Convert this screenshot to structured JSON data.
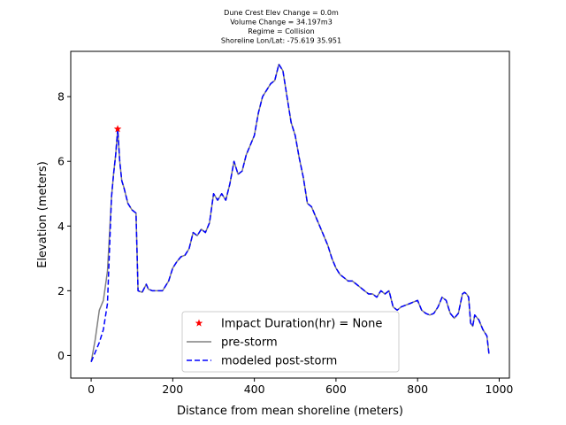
{
  "chart_data": {
    "type": "line",
    "title_lines": [
      "Dune Crest Elev Change = 0.0m",
      "Volume Change = 34.197m3",
      "Regime = Collision",
      "Shoreline Lon/Lat: -75.619 35.951"
    ],
    "xlabel": "Distance from mean shoreline (meters)",
    "ylabel": "Elevation (meters)",
    "xlim": [
      -50,
      1025
    ],
    "ylim": [
      -0.7,
      9.4
    ],
    "xticks": [
      0,
      200,
      400,
      600,
      800,
      1000
    ],
    "yticks": [
      0,
      2,
      4,
      6,
      8
    ],
    "legend_position": "lower-center",
    "colors": {
      "pre": "#808080",
      "post": "#0000ff",
      "marker": "#ff0000"
    },
    "legend": [
      "Impact Duration(hr) = None",
      "pre-storm",
      "modeled post-storm"
    ],
    "marker": {
      "name": "Impact Duration(hr) = None",
      "x": 65,
      "y": 7.0
    },
    "series": [
      {
        "name": "pre-storm",
        "style": "solid",
        "x": [
          0,
          10,
          20,
          30,
          40,
          50,
          55,
          60,
          65,
          70,
          75,
          80,
          90,
          100,
          110,
          115,
          125,
          135,
          140,
          150,
          160,
          175,
          190,
          200,
          210,
          220,
          230,
          240,
          250,
          260,
          270,
          280,
          290,
          300,
          310,
          320,
          330,
          340,
          350,
          360,
          370,
          380,
          390,
          400,
          410,
          420,
          430,
          440,
          450,
          460,
          470,
          480,
          490,
          500,
          510,
          520,
          530,
          540,
          550,
          560,
          570,
          580,
          590,
          600,
          610,
          620,
          630,
          640,
          650,
          660,
          670,
          680,
          690,
          700,
          710,
          720,
          730,
          740,
          750,
          760,
          770,
          780,
          790,
          800,
          810,
          820,
          830,
          840,
          850,
          860,
          870,
          880,
          890,
          900,
          910,
          915,
          920,
          925,
          930,
          935,
          940,
          950,
          960,
          970,
          975
        ],
        "y": [
          -0.2,
          0.5,
          1.4,
          1.7,
          2.6,
          4.9,
          5.6,
          6.2,
          7.0,
          6.0,
          5.4,
          5.2,
          4.7,
          4.5,
          4.4,
          2.0,
          1.95,
          2.2,
          2.05,
          2.0,
          2.0,
          2.0,
          2.3,
          2.7,
          2.9,
          3.05,
          3.1,
          3.3,
          3.8,
          3.7,
          3.9,
          3.8,
          4.1,
          5.0,
          4.8,
          5.0,
          4.8,
          5.3,
          6.0,
          5.6,
          5.7,
          6.2,
          6.5,
          6.8,
          7.5,
          8.0,
          8.2,
          8.4,
          8.5,
          9.0,
          8.8,
          8.0,
          7.2,
          6.8,
          6.1,
          5.5,
          4.7,
          4.6,
          4.3,
          4.0,
          3.7,
          3.4,
          3.0,
          2.7,
          2.5,
          2.4,
          2.3,
          2.3,
          2.2,
          2.1,
          2.0,
          1.9,
          1.9,
          1.8,
          2.0,
          1.9,
          2.0,
          1.5,
          1.4,
          1.5,
          1.55,
          1.6,
          1.65,
          1.7,
          1.4,
          1.3,
          1.25,
          1.3,
          1.5,
          1.8,
          1.7,
          1.3,
          1.15,
          1.3,
          1.9,
          1.95,
          1.9,
          1.8,
          1.0,
          0.9,
          1.25,
          1.1,
          0.8,
          0.6,
          0.05
        ]
      },
      {
        "name": "modeled post-storm",
        "style": "dashed",
        "x": [
          0,
          10,
          20,
          30,
          40,
          50,
          55,
          60,
          65,
          70,
          75,
          80,
          90,
          100,
          110,
          115,
          125,
          135,
          140,
          150,
          160,
          175,
          190,
          200,
          210,
          220,
          230,
          240,
          250,
          260,
          270,
          280,
          290,
          300,
          310,
          320,
          330,
          340,
          350,
          360,
          370,
          380,
          390,
          400,
          410,
          420,
          430,
          440,
          450,
          460,
          470,
          480,
          490,
          500,
          510,
          520,
          530,
          540,
          550,
          560,
          570,
          580,
          590,
          600,
          610,
          620,
          630,
          640,
          650,
          660,
          670,
          680,
          690,
          700,
          710,
          720,
          730,
          740,
          750,
          760,
          770,
          780,
          790,
          800,
          810,
          820,
          830,
          840,
          850,
          860,
          870,
          880,
          890,
          900,
          910,
          915,
          920,
          925,
          930,
          935,
          940,
          950,
          960,
          970,
          975
        ],
        "y": [
          -0.2,
          0.1,
          0.4,
          0.8,
          1.6,
          4.9,
          5.6,
          6.2,
          7.0,
          6.0,
          5.4,
          5.2,
          4.7,
          4.5,
          4.4,
          2.0,
          1.95,
          2.2,
          2.05,
          2.0,
          2.0,
          2.0,
          2.3,
          2.7,
          2.9,
          3.05,
          3.1,
          3.3,
          3.8,
          3.7,
          3.9,
          3.8,
          4.1,
          5.0,
          4.8,
          5.0,
          4.8,
          5.3,
          6.0,
          5.6,
          5.7,
          6.2,
          6.5,
          6.8,
          7.5,
          8.0,
          8.2,
          8.4,
          8.5,
          9.0,
          8.8,
          8.0,
          7.2,
          6.8,
          6.1,
          5.5,
          4.7,
          4.6,
          4.3,
          4.0,
          3.7,
          3.4,
          3.0,
          2.7,
          2.5,
          2.4,
          2.3,
          2.3,
          2.2,
          2.1,
          2.0,
          1.9,
          1.9,
          1.8,
          2.0,
          1.9,
          2.0,
          1.5,
          1.4,
          1.5,
          1.55,
          1.6,
          1.65,
          1.7,
          1.4,
          1.3,
          1.25,
          1.3,
          1.5,
          1.8,
          1.7,
          1.3,
          1.15,
          1.3,
          1.9,
          1.95,
          1.9,
          1.8,
          1.0,
          0.9,
          1.25,
          1.1,
          0.8,
          0.6,
          0.05
        ]
      }
    ]
  }
}
